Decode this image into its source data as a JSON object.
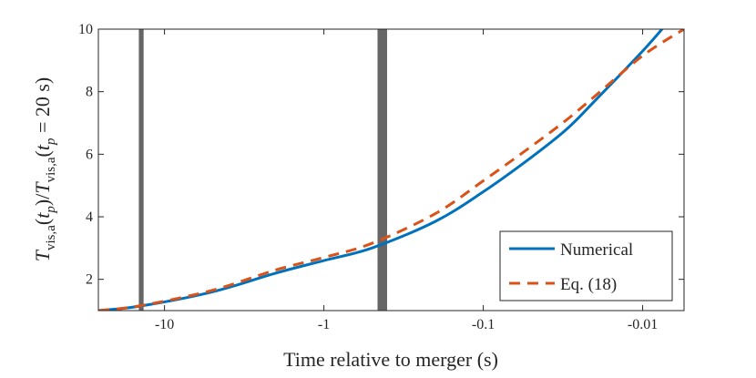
{
  "chart_data": {
    "type": "line",
    "title": "",
    "xlabel": "Time relative to merger (s)",
    "ylabel": {
      "T": "T",
      "sub": "vis,a",
      "arg_open": "(",
      "t": "t",
      "p": "p",
      "arg_close": ")",
      "slash": "/",
      "eq_part": " = 20 s)"
    },
    "x_axis": {
      "scale": "log-reversed",
      "direction": "time until merger decreasing to the right",
      "lim": [
        26,
        0.0055
      ],
      "ticks": [
        10,
        1,
        0.1,
        0.01
      ],
      "tick_labels": [
        "-10",
        "-1",
        "-0.1",
        "-0.01"
      ]
    },
    "y_axis": {
      "lim": [
        1,
        10
      ],
      "ticks": [
        2,
        4,
        6,
        8,
        10
      ],
      "tick_labels": [
        "2",
        "4",
        "6",
        "8",
        "10"
      ]
    },
    "vertical_markers": [
      {
        "x": 14,
        "width_decades": 0.03
      },
      {
        "x": 0.43,
        "width_decades": 0.06
      }
    ],
    "series": [
      {
        "name": "Numerical",
        "color": "#0072BD",
        "dash": "solid",
        "points": [
          [
            26,
            1.0
          ],
          [
            14,
            1.15
          ],
          [
            5,
            1.6
          ],
          [
            2,
            2.2
          ],
          [
            1,
            2.6
          ],
          [
            0.5,
            3.0
          ],
          [
            0.2,
            3.85
          ],
          [
            0.1,
            4.8
          ],
          [
            0.05,
            5.9
          ],
          [
            0.03,
            6.8
          ],
          [
            0.02,
            7.7
          ],
          [
            0.01,
            9.3
          ],
          [
            0.007,
            10.2
          ]
        ]
      },
      {
        "name": "Eq. (18)",
        "color": "#D95319",
        "dash": "dashed",
        "points": [
          [
            26,
            1.0
          ],
          [
            14,
            1.16
          ],
          [
            5,
            1.65
          ],
          [
            2,
            2.3
          ],
          [
            1,
            2.7
          ],
          [
            0.5,
            3.15
          ],
          [
            0.2,
            4.1
          ],
          [
            0.1,
            5.15
          ],
          [
            0.05,
            6.25
          ],
          [
            0.03,
            7.1
          ],
          [
            0.02,
            7.85
          ],
          [
            0.01,
            9.15
          ],
          [
            0.0055,
            10.0
          ]
        ]
      }
    ],
    "legend": {
      "position": "bottom-right",
      "entries": [
        "Numerical",
        "Eq. (18)"
      ]
    },
    "marker_color": "#666666",
    "grid": false
  }
}
